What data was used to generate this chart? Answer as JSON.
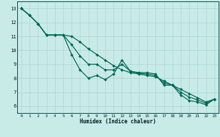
{
  "xlabel": "Humidex (Indice chaleur)",
  "bg_color": "#c8ebe8",
  "grid_color": "#aad4d0",
  "line_color": "#006655",
  "xlim": [
    -0.5,
    23.5
  ],
  "ylim": [
    5.5,
    13.5
  ],
  "xticks": [
    0,
    1,
    2,
    3,
    4,
    5,
    6,
    7,
    8,
    9,
    10,
    11,
    12,
    13,
    14,
    15,
    16,
    17,
    18,
    19,
    20,
    21,
    22,
    23
  ],
  "yticks": [
    6,
    7,
    8,
    9,
    10,
    11,
    12,
    13
  ],
  "line1": [
    13.0,
    12.5,
    11.9,
    11.1,
    11.1,
    11.1,
    11.0,
    10.6,
    10.1,
    9.7,
    9.3,
    8.9,
    8.6,
    8.4,
    8.3,
    8.2,
    8.1,
    7.8,
    7.5,
    7.2,
    6.9,
    6.6,
    6.3,
    6.5
  ],
  "line2": [
    13.0,
    12.5,
    11.9,
    11.1,
    11.1,
    11.1,
    9.7,
    8.6,
    8.0,
    8.2,
    7.9,
    8.3,
    9.3,
    8.5,
    8.4,
    8.4,
    8.3,
    7.5,
    7.5,
    6.8,
    6.4,
    6.3,
    6.1,
    6.5
  ],
  "line3": [
    13.0,
    12.5,
    11.9,
    11.1,
    11.1,
    11.1,
    10.4,
    9.6,
    9.0,
    9.0,
    8.6,
    8.6,
    9.0,
    8.5,
    8.35,
    8.3,
    8.2,
    7.65,
    7.5,
    7.0,
    6.65,
    6.45,
    6.2,
    6.5
  ]
}
